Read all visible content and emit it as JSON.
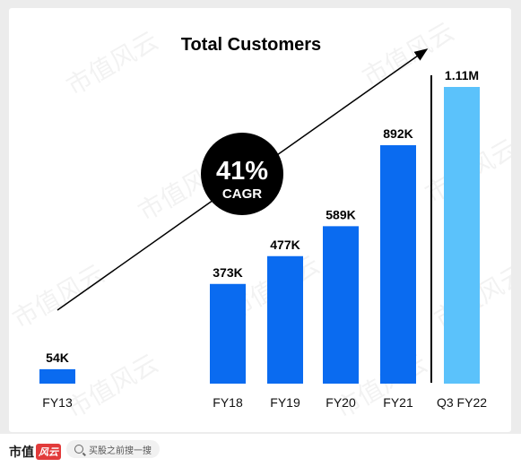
{
  "chart_data": {
    "type": "bar",
    "title": "Total Customers",
    "categories": [
      "FY13",
      "FY18",
      "FY19",
      "FY20",
      "FY21",
      "Q3 FY22"
    ],
    "values": [
      54,
      373,
      477,
      589,
      892,
      1110
    ],
    "value_labels": [
      "54K",
      "373K",
      "477K",
      "589K",
      "892K",
      "1.11M"
    ],
    "unit": "thousands",
    "ylim": [
      0,
      1110
    ],
    "grid": false,
    "annotation": {
      "value": "41%",
      "label": "CAGR"
    },
    "colors": {
      "bar": "#0a6bf0",
      "highlight_bar": "#5bc2fb",
      "badge": "#000000",
      "text": "#000000"
    }
  },
  "watermark": {
    "text": "市值风云"
  },
  "footer": {
    "brand_name": "市值",
    "brand_mark": "风云",
    "search_icon": "search-icon",
    "search_placeholder": "买股之前搜一搜"
  }
}
